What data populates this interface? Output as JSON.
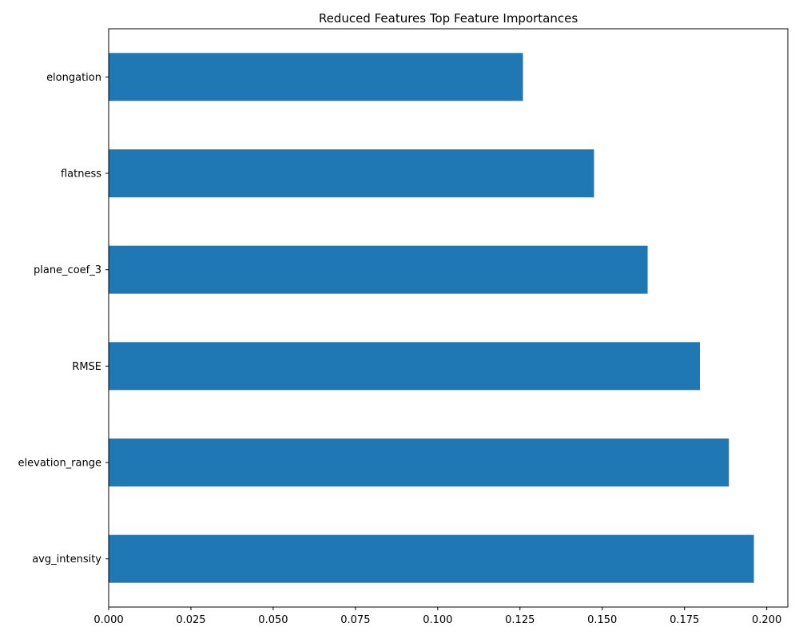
{
  "chart_data": {
    "type": "bar",
    "orientation": "horizontal",
    "title": "Reduced Features Top Feature Importances",
    "xlabel": "",
    "ylabel": "",
    "categories": [
      "elongation",
      "flatness",
      "plane_coef_3",
      "RMSE",
      "elevation_range",
      "avg_intensity"
    ],
    "values": [
      0.1259,
      0.1475,
      0.1638,
      0.1797,
      0.1885,
      0.1961
    ],
    "xlim": [
      0.0,
      0.2064
    ],
    "xticks": [
      0.0,
      0.025,
      0.05,
      0.075,
      0.1,
      0.125,
      0.15,
      0.175,
      0.2
    ],
    "xtick_labels": [
      "0.000",
      "0.025",
      "0.050",
      "0.075",
      "0.100",
      "0.125",
      "0.150",
      "0.175",
      "0.200"
    ],
    "bar_color": "#1f77b4",
    "grid": false,
    "legend": false
  }
}
